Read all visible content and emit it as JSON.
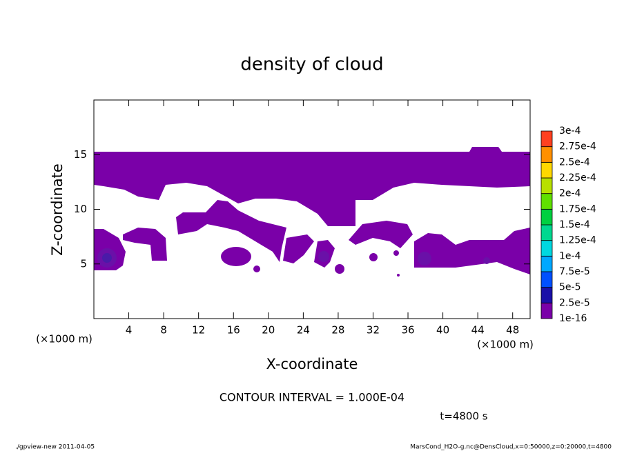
{
  "chart_data": {
    "type": "contour",
    "title": "density of cloud",
    "x_label": "X-coordinate",
    "y_label": "Z-coordinate",
    "x_unit": "(×1000 m)",
    "xlim": [
      0,
      50
    ],
    "ylim": [
      0,
      20
    ],
    "xticks": [
      4,
      8,
      12,
      16,
      20,
      24,
      28,
      32,
      36,
      40,
      44,
      48
    ],
    "yticks": [
      5,
      10,
      15
    ],
    "colorbar_levels": [
      1e-16,
      {
        "value": 2.5e-05,
        "label": "2.5e-5"
      },
      {
        "value": 5e-05,
        "label": "5e-5"
      },
      {
        "value": 7.5e-05,
        "label": "7.5e-5"
      },
      {
        "value": 0.0001,
        "label": "1e-4"
      },
      {
        "value": 0.000125,
        "label": "1.25e-4"
      },
      {
        "value": 0.00015,
        "label": "1.5e-4"
      },
      {
        "value": 0.000175,
        "label": "1.75e-4"
      },
      {
        "value": 0.0002,
        "label": "2e-4"
      },
      {
        "value": 0.000225,
        "label": "2.25e-4"
      },
      {
        "value": 0.00025,
        "label": "2.5e-4"
      },
      {
        "value": 0.000275,
        "label": "2.75e-4"
      },
      {
        "value": 0.0003,
        "label": "3e-4"
      }
    ],
    "colorbar_colors": [
      "#7a00a8",
      "#1a10a8",
      "#0050ff",
      "#00a8ff",
      "#00d8e0",
      "#00d890",
      "#00d040",
      "#60e000",
      "#b8e000",
      "#ffd800",
      "#ff9000",
      "#ff4020",
      "#ff9090"
    ],
    "contour_interval": "CONTOUR INTERVAL = 1.000E-04",
    "time_label": "t=4800 s",
    "footer_left": "./gpview-new  2011-04-05",
    "footer_right": "MarsCond_H2O-g.nc@DensCloud,x=0:50000,z=0:20000,t=4800"
  }
}
